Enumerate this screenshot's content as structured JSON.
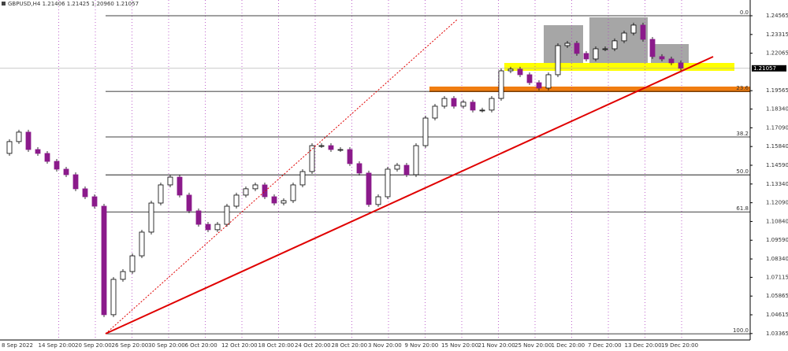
{
  "chart_data": {
    "type": "candlestick",
    "title": "GBPUSD,H4  1.21406 1.21425 1.20960 1.21057",
    "last_price": 1.21057,
    "ylim": [
      1.02935,
      1.2509
    ],
    "yticks": [
      1.24565,
      1.23315,
      1.22065,
      1.19565,
      {
        "value": 1.1834,
        "label": "1.18340"
      },
      {
        "value": 1.1709,
        "label": "1.17090"
      },
      {
        "value": 1.1584,
        "label": "1.15840"
      },
      {
        "value": 1.1459,
        "label": "1.14590"
      },
      {
        "value": 1.1334,
        "label": "1.13340"
      },
      {
        "value": 1.1209,
        "label": "1.12090"
      },
      {
        "value": 1.1084,
        "label": "1.10840"
      },
      {
        "value": 1.0959,
        "label": "1.09590"
      },
      {
        "value": 1.0834,
        "label": "1.08340"
      },
      1.07115,
      1.05865,
      1.04615,
      1.03365
    ],
    "x_labels": [
      "8 Sep 2022",
      "14 Sep 20:00",
      "20 Sep 20:00",
      "26 Sep 20:00",
      "30 Sep 20:00",
      "6 Oct 20:00",
      "12 Oct 20:00",
      "18 Oct 20:00",
      "24 Oct 20:00",
      "28 Oct 20:00",
      "3 Nov 20:00",
      "9 Nov 20:00",
      "15 Nov 20:00",
      "21 Nov 20:00",
      "25 Nov 20:00",
      "1 Dec 20:00",
      "7 Dec 20:00",
      "13 Dec 20:00",
      "19 Dec 20:00"
    ],
    "fib_levels": [
      {
        "label": "0.0",
        "value": 1.24565
      },
      {
        "label": "23.6",
        "value": 1.1952
      },
      {
        "label": "38.2",
        "value": 1.1648
      },
      {
        "label": "50.0",
        "value": 1.1395
      },
      {
        "label": "61.8",
        "value": 1.1148
      },
      {
        "label": "100.0",
        "value": 1.0335
      }
    ],
    "up_color": "#ffffff",
    "down_color": "#8b1a8b",
    "close": [
      1.1538,
      1.1617,
      1.168,
      1.1564,
      1.1538,
      1.1485,
      1.1433,
      1.1396,
      1.1302,
      1.1249,
      1.1186,
      1.0462,
      1.0698,
      1.075,
      1.0855,
      1.1013,
      1.1207,
      1.1328,
      1.138,
      1.126,
      1.1155,
      1.1065,
      1.1029,
      1.1065,
      1.1186,
      1.126,
      1.1302,
      1.1328,
      1.1249,
      1.1207,
      1.1223,
      1.1328,
      1.1417,
      1.159,
      1.159,
      1.1564,
      1.1564,
      1.147,
      1.1407,
      1.1197,
      1.1249,
      1.1433,
      1.1459,
      1.1396,
      1.159,
      1.1774,
      1.1853,
      1.1905,
      1.1853,
      1.188,
      1.1827,
      1.1827,
      1.1905,
      1.2089,
      1.21,
      1.2063,
      1.201,
      1.1974,
      1.2063,
      1.2257,
      1.2273,
      1.2205,
      1.2168,
      1.2236,
      1.2236,
      1.2289,
      1.2341,
      1.2394,
      1.2299,
      1.2184,
      1.2168,
      1.2142,
      1.2106
    ]
  }
}
